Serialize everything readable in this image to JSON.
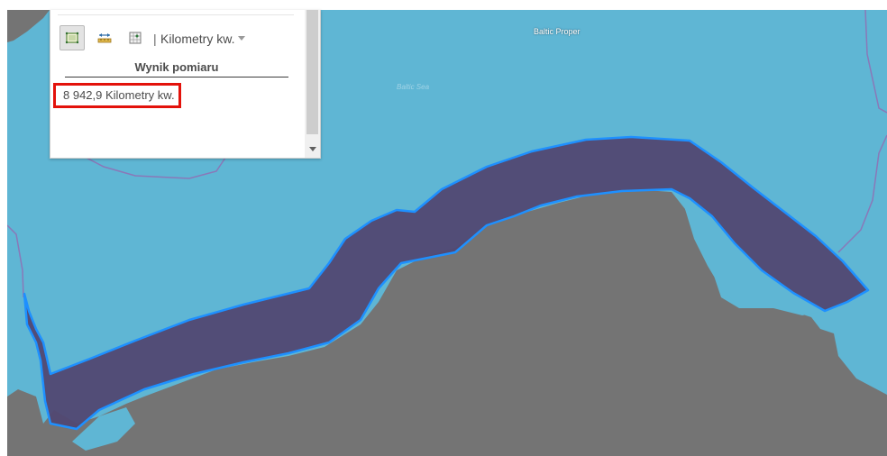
{
  "map": {
    "sea_label": "Baltic Proper",
    "sea_sub_label": "Baltic Sea",
    "colors": {
      "water": "#5fb6d4",
      "land": "#747474",
      "measured_area_fill": "#514872",
      "measured_area_outline": "#1e90ff",
      "boundary_lines": "#8a78b8"
    }
  },
  "measure_panel": {
    "tools": [
      {
        "name": "area",
        "icon": "area-measure-icon",
        "active": true
      },
      {
        "name": "distance",
        "icon": "distance-measure-icon",
        "active": false
      },
      {
        "name": "location",
        "icon": "location-measure-icon",
        "active": false
      }
    ],
    "separator": "|",
    "unit": "Kilometry kw.",
    "result_title": "Wynik pomiaru",
    "result_value": "8 942,9 Kilometry kw.",
    "highlight_color": "#e3120b"
  }
}
